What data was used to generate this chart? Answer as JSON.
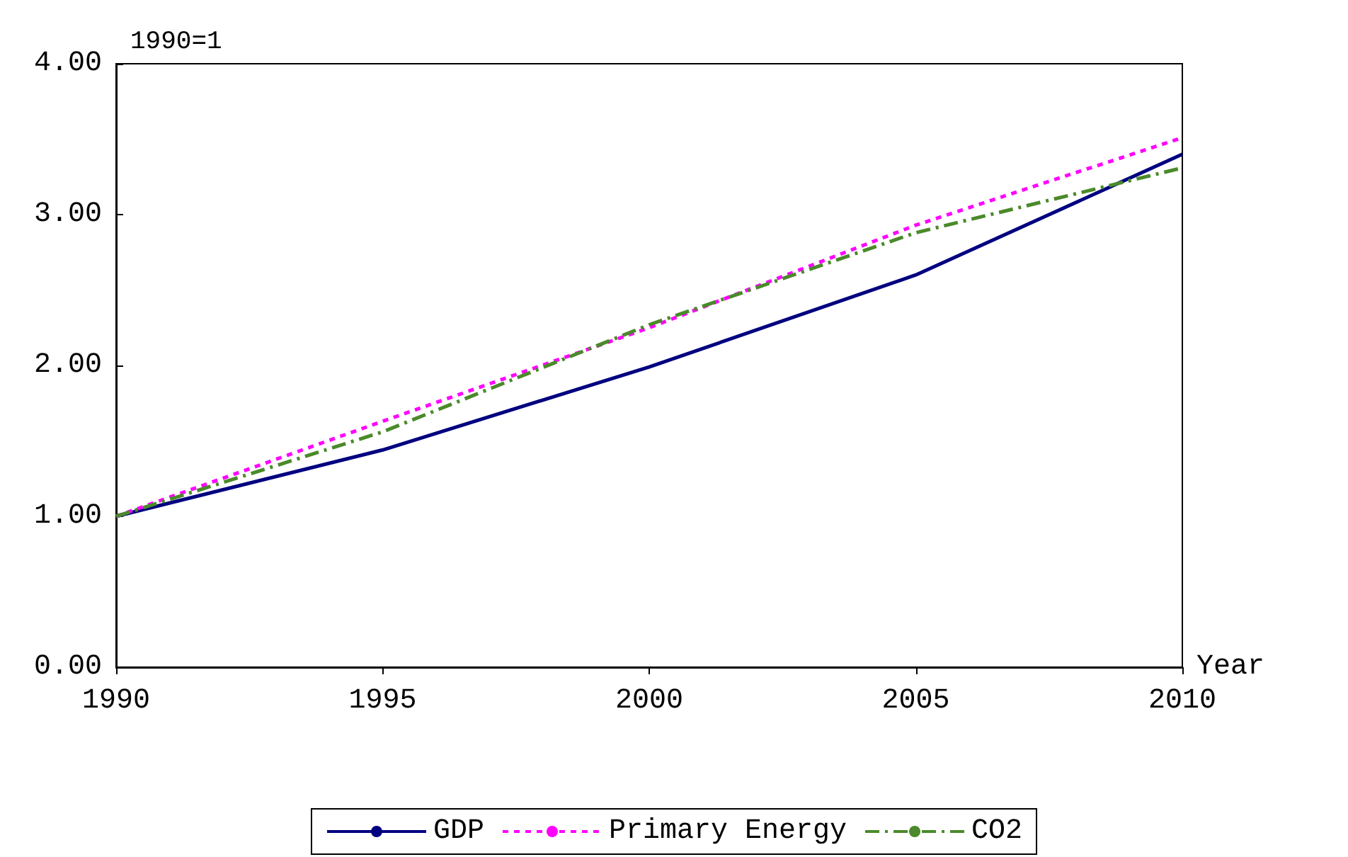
{
  "chart_data": {
    "type": "line",
    "xlabel": "Year",
    "ylabel": "1990=1",
    "x": [
      1990,
      1995,
      2000,
      2005,
      2010
    ],
    "series": [
      {
        "name": "GDP",
        "color": "#000080",
        "line_style": "solid",
        "values": [
          1.0,
          1.44,
          1.99,
          2.6,
          3.4
        ]
      },
      {
        "name": "Primary Energy",
        "color": "#ff00ff",
        "line_style": "dotted",
        "values": [
          1.0,
          1.63,
          2.25,
          2.93,
          3.51
        ]
      },
      {
        "name": "CO2",
        "color": "#4a8a2a",
        "line_style": "dashed",
        "values": [
          1.0,
          1.56,
          2.27,
          2.88,
          3.31
        ]
      }
    ],
    "xlim": [
      1990,
      2010
    ],
    "xticks": [
      1990,
      1995,
      2000,
      2005,
      2010
    ],
    "ylim": [
      0,
      4
    ],
    "yticks": [
      {
        "value": 0,
        "label": "0.00"
      },
      {
        "value": 1,
        "label": "1.00"
      },
      {
        "value": 2,
        "label": "2.00"
      },
      {
        "value": 3,
        "label": "3.00"
      },
      {
        "value": 4,
        "label": "4.00"
      }
    ],
    "grid": false,
    "legend": "bottom",
    "marker": "none"
  }
}
